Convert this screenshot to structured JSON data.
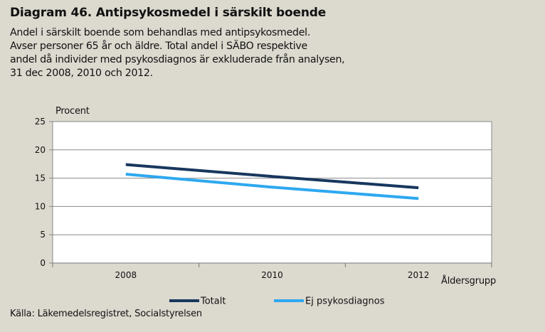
{
  "header": {
    "title": "Diagram 46. Antipsykosmedel i särskilt boende",
    "subtitle_lines": [
      "Andel i särskilt boende som behandlas med antipsykosmedel.",
      "Avser personer 65 år och äldre. Total andel i SÄBO respektive",
      "andel då individer med psykosdiagnos är exkluderade från analysen,",
      "31 dec 2008, 2010 och 2012."
    ]
  },
  "footer": {
    "source": "Källa: Läkemedelsregistret, Socialstyrelsen"
  },
  "chart_data": {
    "type": "line",
    "title": "Diagram 46. Antipsykosmedel i särskilt boende",
    "ylabel": "Procent",
    "xlabel": "Åldersgrupp",
    "categories": [
      "2008",
      "2010",
      "2012"
    ],
    "series": [
      {
        "name": "Totalt",
        "values": [
          17.4,
          15.3,
          13.3
        ],
        "color": "#17375e"
      },
      {
        "name": "Ej psykosdiagnos",
        "values": [
          15.7,
          13.4,
          11.4
        ],
        "color": "#2ea8f0"
      }
    ],
    "ylim": [
      0,
      25
    ],
    "yticks": [
      0,
      5,
      10,
      15,
      20,
      25
    ],
    "grid": true,
    "legend": "bottom",
    "plot_background": "#ffffff"
  }
}
